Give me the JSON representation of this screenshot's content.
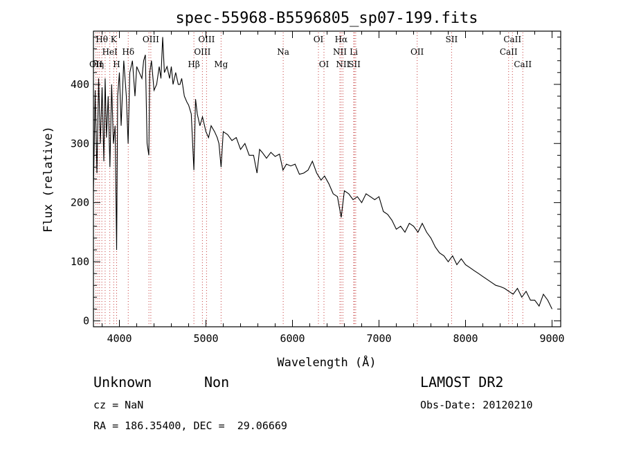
{
  "chart_data": {
    "type": "line",
    "title": "spec-55968-B5596805_sp07-199.fits",
    "xlabel": "Wavelength (Å)",
    "ylabel": "Flux (relative)",
    "xlim": [
      3700,
      9100
    ],
    "ylim": [
      -10,
      490
    ],
    "xticks": [
      4000,
      5000,
      6000,
      7000,
      8000,
      9000
    ],
    "yticks": [
      0,
      100,
      200,
      300,
      400
    ],
    "spectrum": {
      "x": [
        3700,
        3720,
        3740,
        3760,
        3780,
        3800,
        3820,
        3835,
        3850,
        3870,
        3890,
        3910,
        3930,
        3950,
        3968,
        3980,
        4000,
        4020,
        4050,
        4080,
        4101,
        4120,
        4150,
        4180,
        4200,
        4230,
        4260,
        4280,
        4300,
        4320,
        4340,
        4350,
        4370,
        4400,
        4430,
        4460,
        4480,
        4500,
        4520,
        4550,
        4580,
        4600,
        4620,
        4650,
        4680,
        4700,
        4720,
        4750,
        4780,
        4800,
        4830,
        4861,
        4880,
        4900,
        4930,
        4960,
        5000,
        5030,
        5060,
        5100,
        5130,
        5150,
        5175,
        5200,
        5250,
        5300,
        5350,
        5400,
        5450,
        5500,
        5550,
        5590,
        5620,
        5650,
        5700,
        5750,
        5800,
        5850,
        5890,
        5930,
        5980,
        6030,
        6080,
        6130,
        6180,
        6230,
        6280,
        6330,
        6370,
        6420,
        6470,
        6520,
        6563,
        6600,
        6650,
        6700,
        6750,
        6800,
        6850,
        6900,
        6950,
        7000,
        7050,
        7100,
        7150,
        7200,
        7250,
        7300,
        7350,
        7400,
        7450,
        7500,
        7550,
        7600,
        7650,
        7700,
        7750,
        7800,
        7850,
        7900,
        7950,
        8000,
        8050,
        8100,
        8150,
        8200,
        8250,
        8300,
        8350,
        8400,
        8450,
        8500,
        8550,
        8600,
        8650,
        8700,
        8750,
        8800,
        8850,
        8900,
        8950,
        9000
      ],
      "y": [
        220,
        390,
        250,
        410,
        300,
        395,
        270,
        410,
        310,
        380,
        260,
        400,
        300,
        330,
        120,
        380,
        420,
        330,
        440,
        380,
        300,
        420,
        440,
        380,
        430,
        420,
        410,
        440,
        450,
        300,
        280,
        420,
        440,
        390,
        400,
        430,
        410,
        480,
        420,
        430,
        410,
        430,
        400,
        420,
        400,
        400,
        410,
        380,
        370,
        365,
        350,
        255,
        375,
        350,
        330,
        345,
        320,
        310,
        330,
        320,
        310,
        300,
        260,
        320,
        315,
        305,
        310,
        290,
        300,
        280,
        280,
        250,
        290,
        285,
        275,
        285,
        278,
        282,
        255,
        265,
        262,
        265,
        248,
        250,
        255,
        270,
        250,
        238,
        245,
        232,
        215,
        210,
        175,
        220,
        215,
        205,
        210,
        200,
        215,
        210,
        205,
        210,
        185,
        180,
        170,
        155,
        160,
        150,
        165,
        160,
        150,
        165,
        150,
        140,
        125,
        115,
        110,
        100,
        110,
        95,
        105,
        95,
        90,
        85,
        80,
        75,
        70,
        65,
        60,
        58,
        55,
        50,
        45,
        55,
        40,
        50,
        35,
        35,
        25,
        45,
        35,
        20
      ]
    },
    "line_markers": [
      {
        "x": 3729,
        "label": "OII",
        "row": 3
      },
      {
        "x": 3750,
        "label": "Hη",
        "row": 3
      },
      {
        "x": 3770,
        "label": "",
        "row": 0
      },
      {
        "x": 3797,
        "label": "Hθ",
        "row": 1
      },
      {
        "x": 3835,
        "label": "",
        "row": 0
      },
      {
        "x": 3889,
        "label": "HeI",
        "row": 2
      },
      {
        "x": 3934,
        "label": "K",
        "row": 1
      },
      {
        "x": 3968,
        "label": "H",
        "row": 3
      },
      {
        "x": 4102,
        "label": "Hδ",
        "row": 2
      },
      {
        "x": 4341,
        "label": "",
        "row": 0
      },
      {
        "x": 4363,
        "label": "OIII",
        "row": 1
      },
      {
        "x": 4861,
        "label": "Hβ",
        "row": 3
      },
      {
        "x": 4959,
        "label": "OIII",
        "row": 2
      },
      {
        "x": 5007,
        "label": "OIII",
        "row": 1
      },
      {
        "x": 5175,
        "label": "Mg",
        "row": 3
      },
      {
        "x": 5893,
        "label": "Na",
        "row": 2
      },
      {
        "x": 6300,
        "label": "OI",
        "row": 1
      },
      {
        "x": 6364,
        "label": "OI",
        "row": 3
      },
      {
        "x": 6548,
        "label": "NII",
        "row": 2
      },
      {
        "x": 6563,
        "label": "Hα",
        "row": 1
      },
      {
        "x": 6583,
        "label": "NII",
        "row": 3
      },
      {
        "x": 6708,
        "label": "Li",
        "row": 2
      },
      {
        "x": 6716,
        "label": "SII",
        "row": 3
      },
      {
        "x": 6731,
        "label": "",
        "row": 0
      },
      {
        "x": 7441,
        "label": "OII",
        "row": 2
      },
      {
        "x": 7839,
        "label": "SII",
        "row": 1
      },
      {
        "x": 8498,
        "label": "CaII",
        "row": 2
      },
      {
        "x": 8542,
        "label": "CaII",
        "row": 1
      },
      {
        "x": 8662,
        "label": "CaII",
        "row": 3
      }
    ]
  },
  "info": {
    "class": "Unknown",
    "subclass": "Non",
    "survey": "LAMOST DR2",
    "cz": "cz = NaN",
    "obs_date": "Obs-Date: 20120210",
    "coords": "RA = 186.35400, DEC =  29.06669"
  }
}
